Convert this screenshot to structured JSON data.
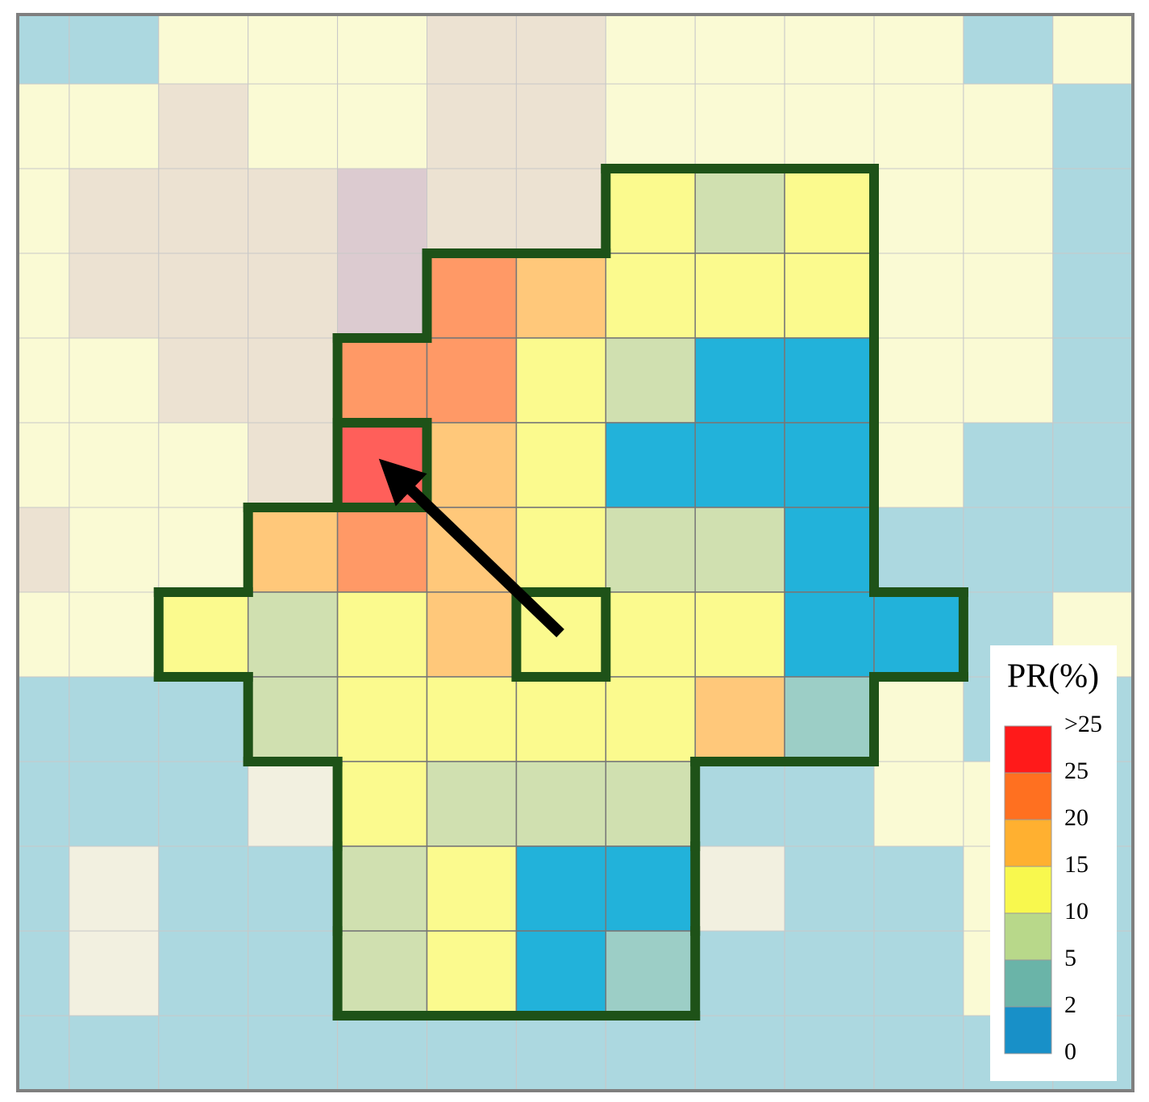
{
  "legend": {
    "title": "PR(%)",
    "labels": [
      ">25",
      "25",
      "20",
      "15",
      "10",
      "5",
      "2",
      "0"
    ]
  }
}
